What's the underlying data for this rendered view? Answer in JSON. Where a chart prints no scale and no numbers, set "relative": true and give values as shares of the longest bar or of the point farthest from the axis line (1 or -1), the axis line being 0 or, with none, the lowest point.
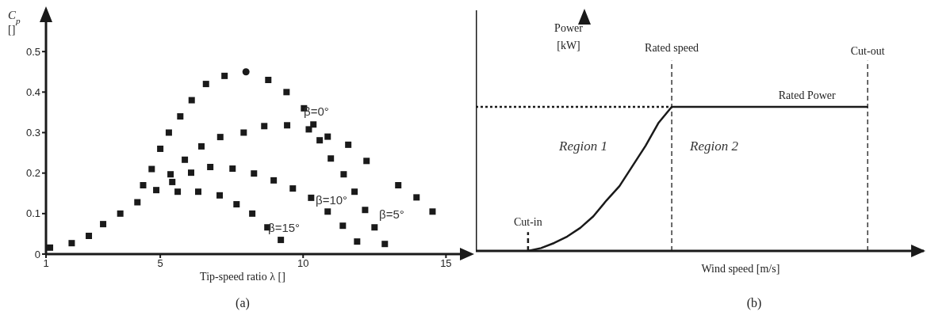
{
  "chart_data": [
    {
      "type": "scatter",
      "xlabel": "Tip-speed ratio λ []",
      "ylabel": "C$_{p}$ []",
      "xlim": [
        1,
        15.6
      ],
      "ylim": [
        0,
        0.6
      ],
      "xticks": [
        1,
        5,
        10,
        15
      ],
      "yticks": [
        0,
        0.1,
        0.2,
        0.3,
        0.4,
        0.5
      ],
      "marker": "square",
      "grid": false,
      "legend": false,
      "series": [
        {
          "name": "β=0°",
          "color": "#1a1a1a",
          "x": [
            1.14,
            1.9,
            2.5,
            3.0,
            3.6,
            4.2,
            4.4,
            4.7,
            5.0,
            5.3,
            5.7,
            6.1,
            6.6,
            7.25,
            8.78,
            9.42,
            10.03,
            10.36,
            10.86,
            11.58,
            12.22,
            13.33,
            13.97,
            14.53
          ],
          "values": [
            0.016,
            0.027,
            0.045,
            0.074,
            0.1,
            0.128,
            0.17,
            0.21,
            0.26,
            0.3,
            0.34,
            0.38,
            0.42,
            0.44,
            0.43,
            0.4,
            0.36,
            0.32,
            0.29,
            0.27,
            0.23,
            0.17,
            0.14,
            0.105
          ]
        },
        {
          "name": "β=5°",
          "color": "#1a1a1a",
          "x": [
            5.36,
            5.86,
            6.44,
            7.1,
            7.92,
            8.64,
            9.44,
            10.2,
            10.58,
            10.97,
            11.42,
            11.8,
            12.17,
            12.5,
            12.86
          ],
          "values": [
            0.197,
            0.233,
            0.266,
            0.289,
            0.3,
            0.316,
            0.318,
            0.308,
            0.281,
            0.236,
            0.197,
            0.154,
            0.109,
            0.066,
            0.025
          ]
        },
        {
          "name": "β=10°",
          "color": "#1a1a1a",
          "x": [
            5.42,
            6.08,
            6.75,
            7.53,
            8.28,
            8.97,
            9.64,
            10.28,
            10.86,
            11.39,
            11.89
          ],
          "values": [
            0.178,
            0.201,
            0.215,
            0.211,
            0.199,
            0.182,
            0.162,
            0.139,
            0.105,
            0.07,
            0.031
          ]
        },
        {
          "name": "β=15°",
          "color": "#1a1a1a",
          "x": [
            4.86,
            5.61,
            6.33,
            7.08,
            7.67,
            8.22,
            8.75,
            9.22
          ],
          "values": [
            0.158,
            0.154,
            0.154,
            0.145,
            0.123,
            0.1,
            0.066,
            0.035
          ]
        },
        {
          "color": "#1a1a1a",
          "marker": "circle",
          "x": [
            8.0
          ],
          "values": [
            0.45
          ]
        }
      ],
      "annotations": [
        "(a)"
      ]
    },
    {
      "type": "line",
      "relative": true,
      "xlabel": "Wind speed [m/s]",
      "ylabel": "Power [kW]",
      "grid": false,
      "legend": false,
      "categories": [
        null,
        null,
        null,
        null,
        null,
        null,
        null,
        null,
        null,
        null,
        null,
        null,
        null,
        null,
        null,
        null,
        null,
        null,
        null,
        null,
        null,
        null,
        null,
        null,
        null,
        null,
        null,
        null,
        null,
        null,
        null,
        null,
        null,
        null,
        null
      ],
      "series": [
        {
          "color": "#1a1a1a",
          "line_style": "solid",
          "values": [
            null,
            null,
            null,
            null,
            0,
            0.02,
            0.055,
            0.1,
            0.16,
            0.24,
            0.35,
            0.45,
            0.59,
            0.73,
            0.89,
            1,
            1,
            1,
            1,
            1,
            1,
            1,
            1,
            1,
            1,
            1,
            1,
            1,
            1,
            1,
            1,
            null,
            null,
            null,
            null
          ]
        }
      ],
      "ref_lines": [
        {
          "axis": "x",
          "label": "Cut-in",
          "line_style": "dashed"
        },
        {
          "axis": "x",
          "label": "Rated speed",
          "line_style": "dashed"
        },
        {
          "axis": "x",
          "label": "Cut-out",
          "line_style": "dashed"
        },
        {
          "axis": "y",
          "value": 1,
          "line_style": "dotted"
        }
      ],
      "annotations": [
        "Rated Power",
        "Region 1",
        "Region 2",
        "(b)"
      ]
    }
  ]
}
